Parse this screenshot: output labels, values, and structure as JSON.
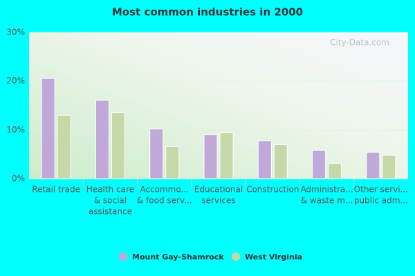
{
  "chart_data": {
    "type": "bar",
    "title": "Most common industries in 2000",
    "watermark": "City-Data.com",
    "categories": [
      [
        "Retail trade"
      ],
      [
        "Health care",
        "& social",
        "assistance"
      ],
      [
        "Accommo...",
        "& food serv..."
      ],
      [
        "Educational",
        "services"
      ],
      [
        "Construction"
      ],
      [
        "Administra...",
        "& waste m..."
      ],
      [
        "Other servi...",
        "public adm..."
      ]
    ],
    "series": [
      {
        "name": "Mount Gay-Shamrock",
        "color": "#c0a8d8",
        "values": [
          20.6,
          16.1,
          10.2,
          9.0,
          7.8,
          5.8,
          5.4
        ]
      },
      {
        "name": "West Virginia",
        "color": "#c5d8a8",
        "values": [
          13.0,
          13.5,
          6.6,
          9.4,
          7.0,
          3.1,
          4.8
        ]
      }
    ],
    "ylim": [
      0,
      30
    ],
    "yticks": [
      {
        "value": 0,
        "label": "0%"
      },
      {
        "value": 10,
        "label": "10%"
      },
      {
        "value": 20,
        "label": "20%"
      },
      {
        "value": 30,
        "label": "30%"
      }
    ],
    "grid": true
  }
}
